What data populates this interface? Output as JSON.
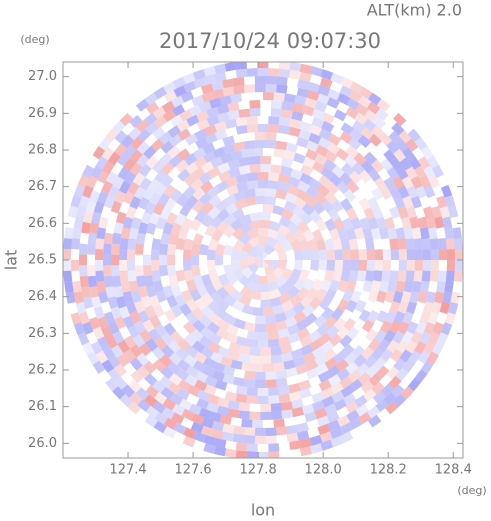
{
  "chart_data": {
    "type": "radar-ppi",
    "title": "2017/10/24 09:07:30",
    "subtitle": "ALT(km) 2.0",
    "xlabel": "lon",
    "xlabel_unit": "(deg)",
    "ylabel": "lat",
    "ylabel_unit": "(deg)",
    "xlim": [
      127.2,
      128.43
    ],
    "ylim": [
      25.96,
      27.04
    ],
    "xticks": [
      127.4,
      127.6,
      127.8,
      {
        "value": 128,
        "label": "128.0"
      },
      128.2,
      128.4
    ],
    "yticks": [
      {
        "value": 26,
        "label": "26.0"
      },
      26.1,
      26.2,
      26.3,
      26.4,
      26.5,
      26.6,
      26.7,
      26.8,
      26.9,
      {
        "value": 27,
        "label": "27.0"
      }
    ]
  }
}
